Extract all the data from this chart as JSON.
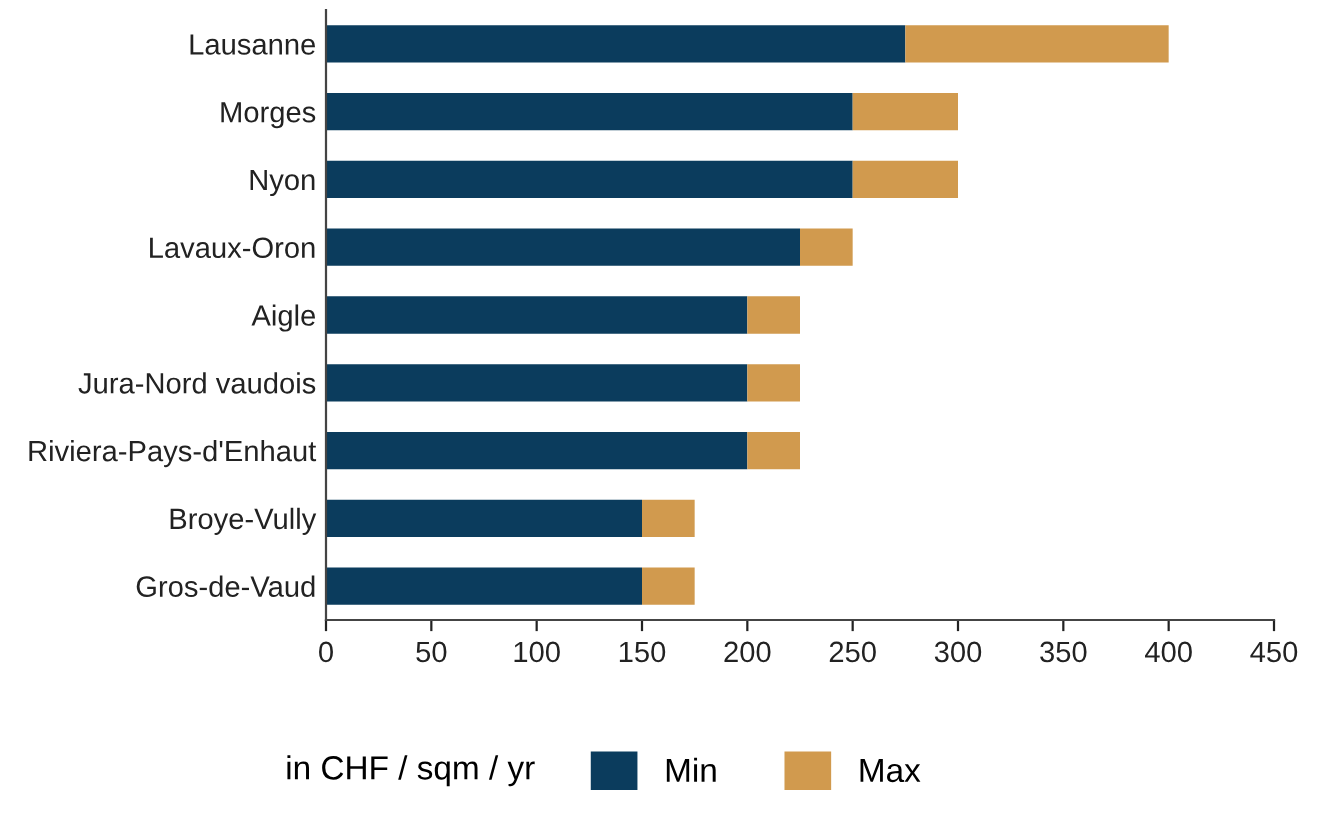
{
  "chart_data": {
    "type": "bar",
    "orientation": "horizontal",
    "stacked": true,
    "categories": [
      "Lausanne",
      "Morges",
      "Nyon",
      "Lavaux-Oron",
      "Aigle",
      "Jura-Nord vaudois",
      "Riviera-Pays-d'Enhaut",
      "Broye-Vully",
      "Gros-de-Vaud"
    ],
    "series": [
      {
        "name": "Min",
        "color": "#0b3c5d",
        "values": [
          275,
          250,
          250,
          225,
          200,
          200,
          200,
          150,
          150
        ]
      },
      {
        "name": "Max",
        "color": "#d19a4e",
        "values": [
          125,
          50,
          50,
          25,
          25,
          25,
          25,
          25,
          25
        ]
      }
    ],
    "xlim": [
      0,
      450
    ],
    "xticks": [
      0,
      50,
      100,
      150,
      200,
      250,
      300,
      350,
      400,
      450
    ],
    "legend": "bottom",
    "legend_title": "in CHF / sqm / yr",
    "grid": false
  }
}
